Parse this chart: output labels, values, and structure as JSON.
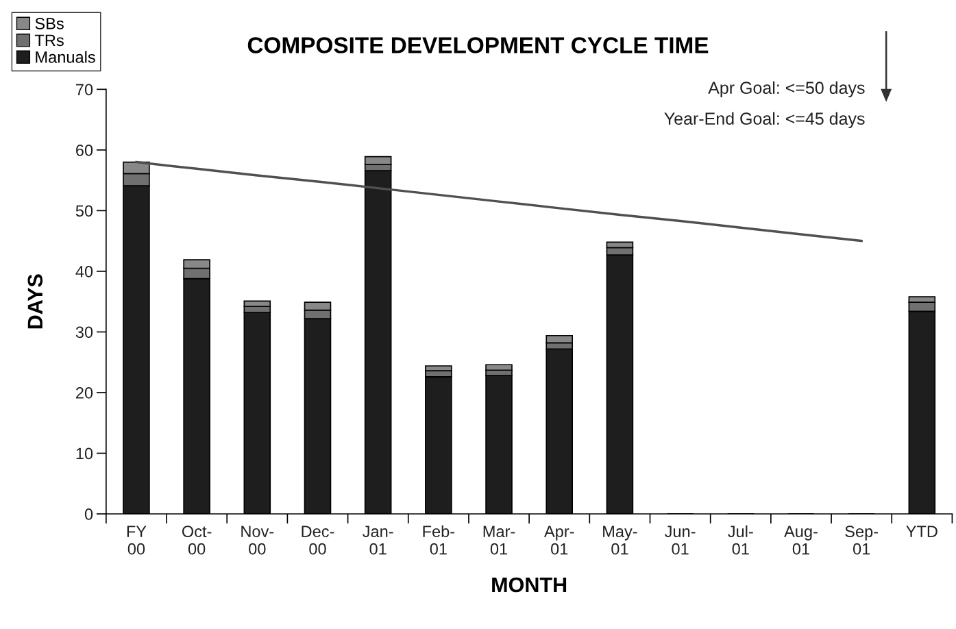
{
  "chart_data": {
    "type": "bar",
    "title": "COMPOSITE DEVELOPMENT CYCLE TIME",
    "xlabel": "MONTH",
    "ylabel": "DAYS",
    "categories": [
      "FY\n00",
      "Oct-\n00",
      "Nov-\n00",
      "Dec-\n00",
      "Jan-\n01",
      "Feb-\n01",
      "Mar-\n01",
      "Apr-\n01",
      "May-\n01",
      "Jun-\n01",
      "Jul-\n01",
      "Aug-\n01",
      "Sep-\n01",
      "YTD"
    ],
    "stacked": true,
    "series": [
      {
        "name": "Manuals",
        "color": "#1e1e1e",
        "values": [
          54.1,
          38.8,
          33.2,
          32.2,
          56.6,
          22.6,
          22.8,
          27.2,
          42.7,
          null,
          null,
          null,
          null,
          33.4
        ]
      },
      {
        "name": "TRs",
        "color": "#707070",
        "values": [
          2.0,
          1.7,
          1.0,
          1.4,
          1.0,
          1.0,
          0.9,
          1.0,
          1.2,
          null,
          null,
          null,
          null,
          1.5
        ]
      },
      {
        "name": "SBs",
        "color": "#888888",
        "values": [
          1.9,
          1.4,
          0.9,
          1.3,
          1.3,
          0.8,
          0.9,
          1.2,
          0.9,
          null,
          null,
          null,
          null,
          0.9
        ]
      },
      {
        "type": "line",
        "color": "#505050",
        "values": [
          58,
          56.9,
          55.8,
          54.8,
          53.7,
          52.6,
          51.5,
          50.4,
          49.3,
          48.3,
          47.2,
          46.1,
          45.0,
          null
        ]
      }
    ],
    "ylim": [
      0,
      70
    ],
    "yticks": [
      0,
      10,
      20,
      30,
      40,
      50,
      60,
      70
    ],
    "annotations": [
      "Apr Goal: <=50 days",
      "Year-End Goal: <=45 days"
    ],
    "legend": "top left",
    "grid": false
  }
}
